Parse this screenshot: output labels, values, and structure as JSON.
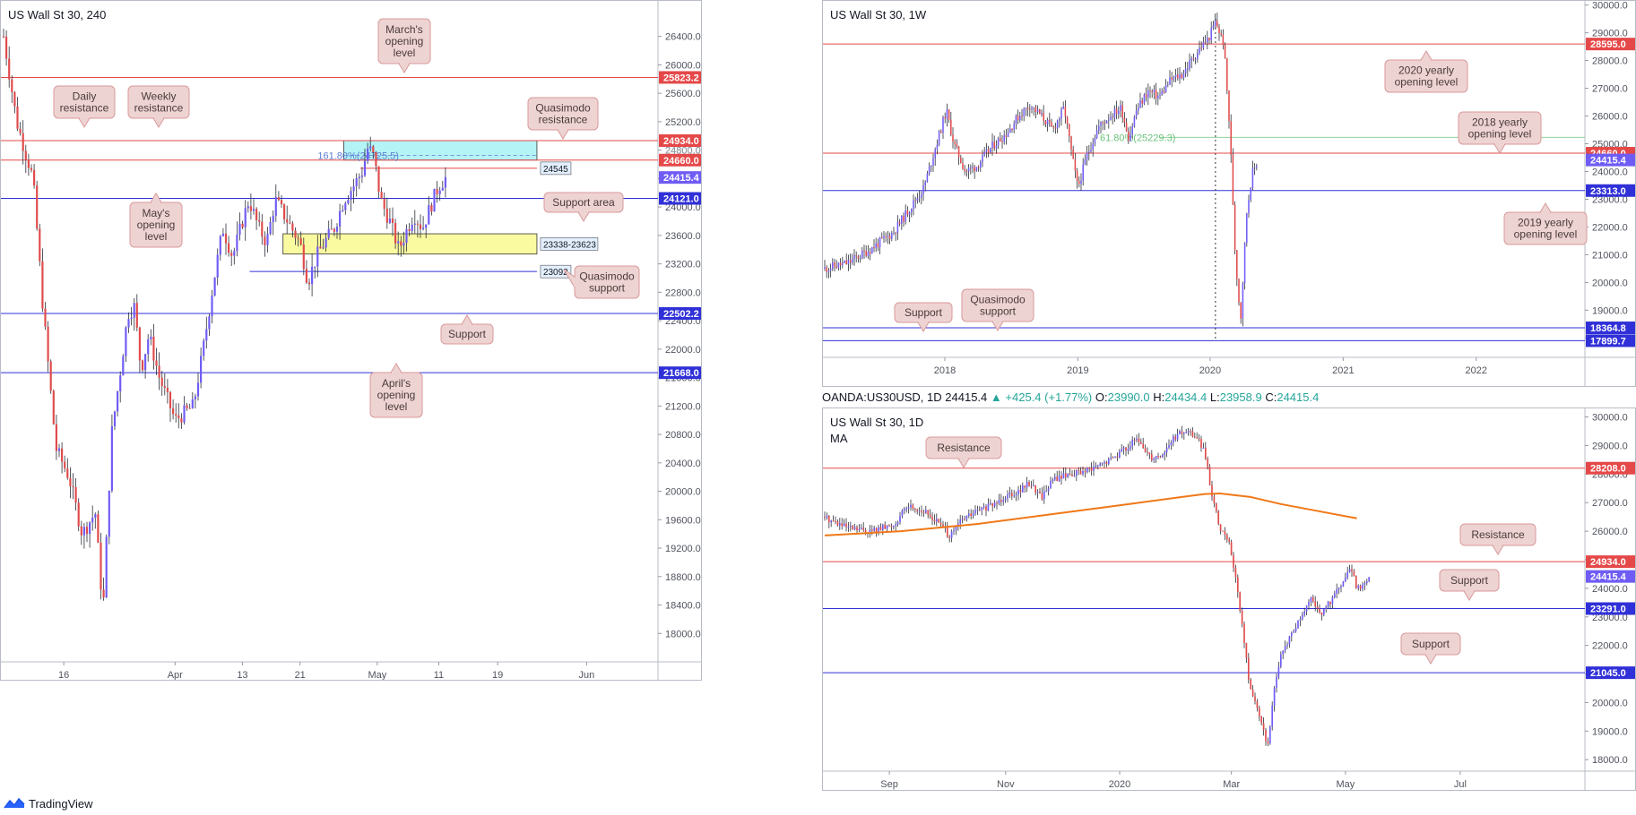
{
  "footer": {
    "brand": "TradingView"
  },
  "colors": {
    "up": "#6f5cf5",
    "down": "#e04b4b",
    "resistance": "#e54848",
    "support": "#3030d8",
    "callout_bg": "#eed3d3",
    "callout_border": "#d99a9a",
    "zone_blue": "#b4f3f6",
    "zone_yellow": "#fafaa0",
    "ma": "#f07818"
  },
  "panels": {
    "h4": {
      "title": "US Wall St 30, 240",
      "chart_data": {
        "type": "candlestick",
        "ylim": [
          17600,
          26900
        ],
        "y_ticks": [
          18000,
          18400,
          18800,
          19200,
          19600,
          20000,
          20400,
          20800,
          21200,
          21600,
          22000,
          22400,
          22800,
          23200,
          23600,
          24000,
          24400,
          24800,
          25200,
          25600,
          26000,
          26400
        ],
        "x_ticks": [
          {
            "label": "16",
            "pos": 0.092
          },
          {
            "label": "Apr",
            "pos": 0.262
          },
          {
            "label": "13",
            "pos": 0.365
          },
          {
            "label": "21",
            "pos": 0.453
          },
          {
            "label": "May",
            "pos": 0.571
          },
          {
            "label": "11",
            "pos": 0.665
          },
          {
            "label": "19",
            "pos": 0.755
          },
          {
            "label": "Jun",
            "pos": 0.891
          }
        ],
        "levels": [
          {
            "value": 25823.2,
            "label": "25823.2",
            "kind": "resistance",
            "badge": true
          },
          {
            "value": 24934.0,
            "label": "24934.0",
            "kind": "resistance",
            "badge": true
          },
          {
            "value": 24660.0,
            "label": "24660.0",
            "kind": "resistance",
            "badge": true
          },
          {
            "value": 24415.4,
            "label": "24415.4",
            "kind": "price",
            "badge": true,
            "line": false
          },
          {
            "value": 24121.0,
            "label": "24121.0",
            "kind": "support",
            "badge": true
          },
          {
            "value": 22502.2,
            "label": "22502.2",
            "kind": "support",
            "badge": true
          },
          {
            "value": 21668.0,
            "label": "21668.0",
            "kind": "support",
            "badge": true
          }
        ],
        "axis_faint_label": "24800.0",
        "short_levels": [
          {
            "value": 24545,
            "label": "24545",
            "kind": "resistance"
          },
          {
            "value": 23092,
            "label": "23092",
            "kind": "support"
          }
        ],
        "zones": [
          {
            "top": 24934,
            "bottom": 24660,
            "kind": "blue"
          },
          {
            "top": 23623,
            "bottom": 23338,
            "kind": "yellow",
            "label": "23338-23623"
          }
        ],
        "fib_label": "161.80%(24725.5)",
        "path": [
          [
            0.0,
            26400
          ],
          [
            0.02,
            25200
          ],
          [
            0.045,
            24400
          ],
          [
            0.06,
            22600
          ],
          [
            0.08,
            20600
          ],
          [
            0.1,
            20200
          ],
          [
            0.12,
            19400
          ],
          [
            0.14,
            19700
          ],
          [
            0.152,
            18300
          ],
          [
            0.165,
            20800
          ],
          [
            0.18,
            21800
          ],
          [
            0.19,
            22500
          ],
          [
            0.2,
            22600
          ],
          [
            0.21,
            21700
          ],
          [
            0.222,
            22200
          ],
          [
            0.238,
            21600
          ],
          [
            0.262,
            21000
          ],
          [
            0.29,
            21200
          ],
          [
            0.305,
            22000
          ],
          [
            0.32,
            22900
          ],
          [
            0.335,
            23700
          ],
          [
            0.35,
            23300
          ],
          [
            0.365,
            23800
          ],
          [
            0.375,
            24100
          ],
          [
            0.39,
            23700
          ],
          [
            0.402,
            23500
          ],
          [
            0.415,
            24100
          ],
          [
            0.428,
            23900
          ],
          [
            0.44,
            23700
          ],
          [
            0.453,
            23500
          ],
          [
            0.465,
            22950
          ],
          [
            0.478,
            23300
          ],
          [
            0.49,
            23500
          ],
          [
            0.505,
            23700
          ],
          [
            0.52,
            24100
          ],
          [
            0.535,
            24300
          ],
          [
            0.548,
            24500
          ],
          [
            0.557,
            24850
          ],
          [
            0.566,
            24700
          ],
          [
            0.576,
            24100
          ],
          [
            0.59,
            23800
          ],
          [
            0.604,
            23400
          ],
          [
            0.615,
            23650
          ],
          [
            0.627,
            23900
          ],
          [
            0.64,
            23700
          ],
          [
            0.652,
            24000
          ],
          [
            0.665,
            24300
          ],
          [
            0.676,
            24415
          ]
        ]
      },
      "callouts": [
        {
          "text": "March's\nopening\nlevel",
          "tail": "down"
        },
        {
          "text": "Daily\nresistance",
          "tail": "down"
        },
        {
          "text": "Weekly\nresistance",
          "tail": "down"
        },
        {
          "text": "Quasimodo\nresistance",
          "tail": "down"
        },
        {
          "text": "May's\nopening\nlevel",
          "tail": "up"
        },
        {
          "text": "Support area",
          "tail": "down"
        },
        {
          "text": "Quasimodo\nsupport",
          "tail": "left"
        },
        {
          "text": "Support",
          "tail": "up"
        },
        {
          "text": "April's\nopening\nlevel",
          "tail": "up"
        }
      ]
    },
    "weekly": {
      "title": "US Wall St 30, 1W",
      "chart_data": {
        "type": "candlestick",
        "ylim": [
          17300,
          30150
        ],
        "y_ticks": [
          18000,
          19000,
          20000,
          21000,
          22000,
          23000,
          24000,
          25000,
          26000,
          27000,
          28000,
          29000,
          30000
        ],
        "x_ticks": [
          {
            "label": "2018",
            "pos": 0.158
          },
          {
            "label": "2019",
            "pos": 0.333
          },
          {
            "label": "2020",
            "pos": 0.507
          },
          {
            "label": "2021",
            "pos": 0.682
          },
          {
            "label": "2022",
            "pos": 0.857
          }
        ],
        "levels": [
          {
            "value": 28595.0,
            "label": "28595.0",
            "kind": "resistance",
            "badge": true
          },
          {
            "value": 24660.0,
            "label": "24660.0",
            "kind": "resistance",
            "badge": true
          },
          {
            "value": 24415.4,
            "label": "24415.4",
            "kind": "price",
            "badge": true,
            "line": false
          },
          {
            "value": 23313.0,
            "label": "23313.0",
            "kind": "support",
            "badge": true
          },
          {
            "value": 18364.8,
            "label": "18364.8",
            "kind": "support",
            "badge": true
          },
          {
            "value": 17899.7,
            "label": "17899.7",
            "kind": "support",
            "badge": true
          }
        ],
        "fib": {
          "value": 25229.3,
          "label": "61.80%(25229.3)"
        },
        "vline_pos": 0.514,
        "path": [
          [
            0.0,
            20500
          ],
          [
            0.03,
            20700
          ],
          [
            0.06,
            21200
          ],
          [
            0.09,
            21800
          ],
          [
            0.11,
            22600
          ],
          [
            0.13,
            23400
          ],
          [
            0.145,
            24800
          ],
          [
            0.16,
            26200
          ],
          [
            0.17,
            25000
          ],
          [
            0.185,
            24000
          ],
          [
            0.2,
            24200
          ],
          [
            0.22,
            24900
          ],
          [
            0.24,
            25400
          ],
          [
            0.255,
            26000
          ],
          [
            0.27,
            26400
          ],
          [
            0.285,
            26000
          ],
          [
            0.3,
            25500
          ],
          [
            0.315,
            26300
          ],
          [
            0.325,
            24600
          ],
          [
            0.333,
            23400
          ],
          [
            0.345,
            24600
          ],
          [
            0.36,
            25600
          ],
          [
            0.375,
            26000
          ],
          [
            0.39,
            26300
          ],
          [
            0.4,
            25200
          ],
          [
            0.41,
            26200
          ],
          [
            0.425,
            26900
          ],
          [
            0.44,
            26700
          ],
          [
            0.455,
            27300
          ],
          [
            0.47,
            27500
          ],
          [
            0.485,
            28100
          ],
          [
            0.495,
            28500
          ],
          [
            0.505,
            28800
          ],
          [
            0.514,
            29400
          ],
          [
            0.525,
            28600
          ],
          [
            0.533,
            25400
          ],
          [
            0.54,
            21000
          ],
          [
            0.547,
            18600
          ],
          [
            0.555,
            22500
          ],
          [
            0.562,
            23900
          ],
          [
            0.57,
            24415
          ]
        ]
      },
      "callouts": [
        {
          "text": "2020 yearly\nopening level",
          "tail": "up"
        },
        {
          "text": "2018 yearly\nopening level",
          "tail": "down"
        },
        {
          "text": "2019 yearly\nopening level",
          "tail": "up"
        },
        {
          "text": "Support",
          "tail": "down"
        },
        {
          "text": "Quasimodo\nsupport",
          "tail": "down"
        }
      ]
    },
    "daily": {
      "title": "US Wall St 30, 1D",
      "indicator": "MA",
      "info": {
        "symbol": "OANDA:US30USD, 1D",
        "last": "24415.4",
        "change": "+425.4 (+1.77%)",
        "o_label": "O:",
        "o": "23990.0",
        "h_label": "H:",
        "h": "24434.4",
        "l_label": "L:",
        "l": "23958.9",
        "c_label": "C:",
        "c": "24415.4"
      },
      "chart_data": {
        "type": "candlestick",
        "ylim": [
          17600,
          30300
        ],
        "y_ticks": [
          18000,
          19000,
          20000,
          21000,
          22000,
          23000,
          24000,
          25000,
          26000,
          27000,
          28000,
          29000,
          30000
        ],
        "x_ticks": [
          {
            "label": "Sep",
            "pos": 0.085
          },
          {
            "label": "Nov",
            "pos": 0.238
          },
          {
            "label": "2020",
            "pos": 0.388
          },
          {
            "label": "Mar",
            "pos": 0.535
          },
          {
            "label": "May",
            "pos": 0.685
          },
          {
            "label": "Jul",
            "pos": 0.836
          }
        ],
        "levels": [
          {
            "value": 28208.0,
            "label": "28208.0",
            "kind": "resistance",
            "badge": true
          },
          {
            "value": 24934.0,
            "label": "24934.0",
            "kind": "resistance",
            "badge": true
          },
          {
            "value": 24415.4,
            "label": "24415.4",
            "kind": "price",
            "badge": true,
            "line": false
          },
          {
            "value": 23291.0,
            "label": "23291.0",
            "kind": "support",
            "badge": true
          },
          {
            "value": 21045.0,
            "label": "21045.0",
            "kind": "support",
            "badge": true
          }
        ],
        "ma": [
          [
            0.0,
            25850
          ],
          [
            0.1,
            26000
          ],
          [
            0.2,
            26250
          ],
          [
            0.3,
            26600
          ],
          [
            0.4,
            26950
          ],
          [
            0.47,
            27200
          ],
          [
            0.5,
            27300
          ],
          [
            0.52,
            27320
          ],
          [
            0.56,
            27200
          ],
          [
            0.6,
            26950
          ],
          [
            0.65,
            26700
          ],
          [
            0.7,
            26450
          ]
        ],
        "path": [
          [
            0.0,
            26500
          ],
          [
            0.03,
            26100
          ],
          [
            0.06,
            26000
          ],
          [
            0.09,
            26200
          ],
          [
            0.11,
            26900
          ],
          [
            0.13,
            26700
          ],
          [
            0.15,
            26300
          ],
          [
            0.165,
            25800
          ],
          [
            0.18,
            26400
          ],
          [
            0.2,
            26700
          ],
          [
            0.22,
            26900
          ],
          [
            0.24,
            27300
          ],
          [
            0.255,
            27400
          ],
          [
            0.27,
            27700
          ],
          [
            0.285,
            27200
          ],
          [
            0.3,
            27800
          ],
          [
            0.32,
            28000
          ],
          [
            0.345,
            28100
          ],
          [
            0.37,
            28400
          ],
          [
            0.39,
            28800
          ],
          [
            0.41,
            29200
          ],
          [
            0.43,
            28600
          ],
          [
            0.445,
            28700
          ],
          [
            0.46,
            29300
          ],
          [
            0.475,
            29500
          ],
          [
            0.49,
            29300
          ],
          [
            0.5,
            28700
          ],
          [
            0.51,
            27200
          ],
          [
            0.52,
            26000
          ],
          [
            0.53,
            25800
          ],
          [
            0.54,
            24500
          ],
          [
            0.55,
            22500
          ],
          [
            0.56,
            20400
          ],
          [
            0.57,
            19800
          ],
          [
            0.582,
            18400
          ],
          [
            0.59,
            20200
          ],
          [
            0.6,
            21600
          ],
          [
            0.612,
            22300
          ],
          [
            0.625,
            22900
          ],
          [
            0.64,
            23600
          ],
          [
            0.655,
            23100
          ],
          [
            0.668,
            23700
          ],
          [
            0.68,
            24100
          ],
          [
            0.692,
            24700
          ],
          [
            0.7,
            24000
          ],
          [
            0.71,
            24200
          ],
          [
            0.718,
            24415
          ]
        ]
      },
      "callouts": [
        {
          "text": "Resistance",
          "tail": "down"
        },
        {
          "text": "Resistance",
          "tail": "down"
        },
        {
          "text": "Support",
          "tail": "down"
        },
        {
          "text": "Support",
          "tail": "down"
        }
      ]
    }
  }
}
